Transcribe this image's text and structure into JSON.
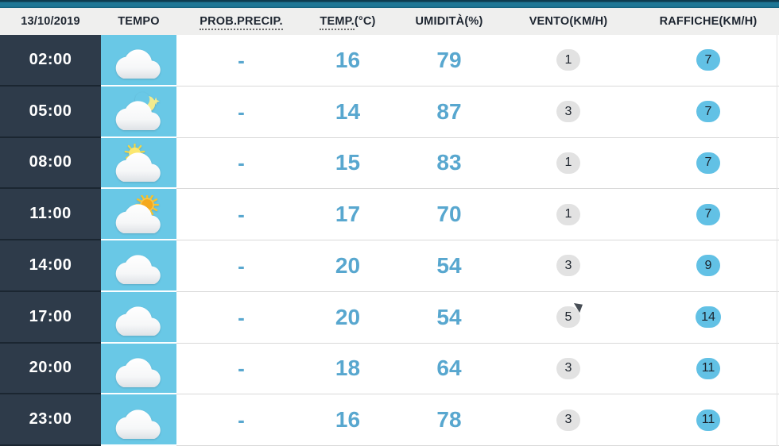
{
  "header": {
    "date": "13/10/2019",
    "tempo": "TEMPO",
    "precip": "PROB.PRECIP.",
    "temp": "TEMP.",
    "temp_unit": "(°C)",
    "humidity": "UMIDITÀ(%)",
    "wind": "VENTO(KM/H)",
    "gusts": "RAFFICHE(KM/H)"
  },
  "colors": {
    "topbar_teal": "#1e7695",
    "header_bg": "#efefee",
    "time_column_bg": "#2e3b4a",
    "tempo_column_bg": "#69c8e6",
    "value_text_blue": "#58a7cf",
    "wind_circle_gray": "#e2e2e2",
    "gust_circle_blue": "#62c1e5"
  },
  "rows": [
    {
      "time": "02:00",
      "icon": "cloud",
      "precip": "-",
      "temp": "16",
      "humidity": "79",
      "wind": "1",
      "gust": "7"
    },
    {
      "time": "05:00",
      "icon": "cloud-moon",
      "precip": "-",
      "temp": "14",
      "humidity": "87",
      "wind": "3",
      "gust": "7"
    },
    {
      "time": "08:00",
      "icon": "cloud-sun-small",
      "precip": "-",
      "temp": "15",
      "humidity": "83",
      "wind": "1",
      "gust": "7"
    },
    {
      "time": "11:00",
      "icon": "cloud-sun",
      "precip": "-",
      "temp": "17",
      "humidity": "70",
      "wind": "1",
      "gust": "7"
    },
    {
      "time": "14:00",
      "icon": "cloud",
      "precip": "-",
      "temp": "20",
      "humidity": "54",
      "wind": "3",
      "gust": "9"
    },
    {
      "time": "17:00",
      "icon": "cloud",
      "precip": "-",
      "temp": "20",
      "humidity": "54",
      "wind": "5",
      "gust": "14"
    },
    {
      "time": "20:00",
      "icon": "cloud",
      "precip": "-",
      "temp": "18",
      "humidity": "64",
      "wind": "3",
      "gust": "11"
    },
    {
      "time": "23:00",
      "icon": "cloud",
      "precip": "-",
      "temp": "16",
      "humidity": "78",
      "wind": "3",
      "gust": "11"
    }
  ]
}
